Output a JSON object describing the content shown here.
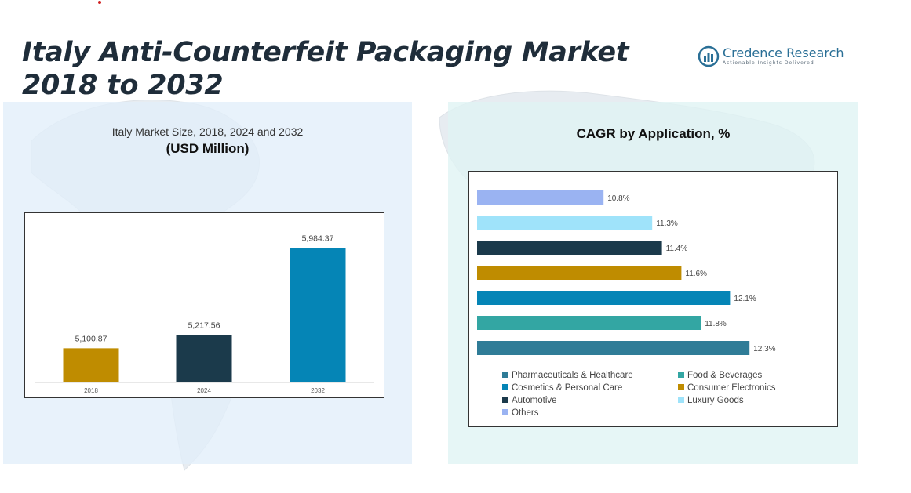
{
  "title": "Italy Anti-Counterfeit Packaging Market 2018 to 2032",
  "logo": {
    "name": "Credence Research",
    "tagline": "Actionable Insights Delivered"
  },
  "colors": {
    "accent": "#2a6f96"
  },
  "icons": {
    "logo": "bar-chart-circle-icon"
  },
  "chart_data": [
    {
      "type": "bar",
      "title": "Italy Market Size, 2018, 2024 and 2032",
      "subtitle": "(USD Million)",
      "categories": [
        "2018",
        "2024",
        "2032"
      ],
      "values": [
        5100.87,
        5217.56,
        5984.37
      ],
      "value_labels": [
        "5,100.87",
        "5,217.56",
        "5,984.37"
      ],
      "colors": [
        "#bf8c00",
        "#1b3a4b",
        "#0585b6"
      ],
      "ylim": [
        4800,
        6000
      ],
      "grid": false
    },
    {
      "type": "bar",
      "orientation": "horizontal",
      "title": "CAGR by Application, %",
      "categories": [
        "Others",
        "Luxury Goods",
        "Automotive",
        "Consumer Electronics",
        "Cosmetics & Personal Care",
        "Food & Beverages",
        "Pharmaceuticals & Healthcare"
      ],
      "values": [
        10.8,
        11.3,
        11.4,
        11.6,
        12.1,
        11.8,
        12.3
      ],
      "value_labels": [
        "10.8%",
        "11.3%",
        "11.4%",
        "11.6%",
        "12.1%",
        "11.8%",
        "12.3%"
      ],
      "colors": [
        "#9ab3f2",
        "#9fe3fa",
        "#1b3a4b",
        "#bf8c00",
        "#0585b6",
        "#33a6a3",
        "#2f7c97"
      ],
      "xlim": [
        9.5,
        12.6
      ],
      "grid": false,
      "legend": {
        "position": "bottom",
        "entries": [
          {
            "label": "Pharmaceuticals & Healthcare",
            "color": "#2f7c97"
          },
          {
            "label": "Food & Beverages",
            "color": "#33a6a3"
          },
          {
            "label": "Cosmetics & Personal Care",
            "color": "#0585b6"
          },
          {
            "label": "Consumer Electronics",
            "color": "#bf8c00"
          },
          {
            "label": "Automotive",
            "color": "#1b3a4b"
          },
          {
            "label": "Luxury Goods",
            "color": "#9fe3fa"
          },
          {
            "label": "Others",
            "color": "#9ab3f2"
          }
        ]
      }
    }
  ]
}
